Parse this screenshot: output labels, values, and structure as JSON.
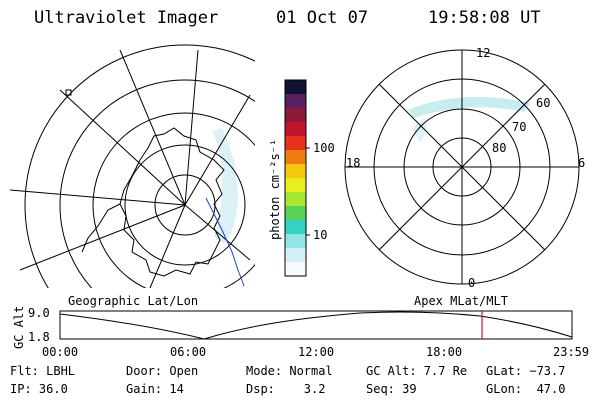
{
  "header": {
    "title": "Ultraviolet Imager",
    "date": "01 Oct 07",
    "time": "19:58:08 UT"
  },
  "colorbar": {
    "label": "photon cm⁻²s⁻¹",
    "ticks": [
      "100",
      "10"
    ],
    "colors": [
      "#111133",
      "#5a1f5e",
      "#8b1a3a",
      "#c0142a",
      "#e8321e",
      "#f07d14",
      "#f5c80f",
      "#e6f01e",
      "#a8e632",
      "#5ad25a",
      "#35d2c3",
      "#8ee6e6",
      "#d2f0f5",
      "#f5fbfd"
    ]
  },
  "polar": {
    "mlt_labels": {
      "top": "12",
      "left": "18",
      "right": "6",
      "bottom": "0"
    },
    "lat_labels": [
      "60",
      "70",
      "80"
    ]
  },
  "map_labels": {
    "left": "Geographic Lat/Lon",
    "right": "Apex MLat/MLT"
  },
  "altplot": {
    "axis_label": "GC Alt",
    "y_ticks": [
      "9.0",
      "1.8"
    ],
    "x_ticks": [
      "00:00",
      "06:00",
      "12:00",
      "18:00",
      "23:59"
    ],
    "marker_color": "#d0141e"
  },
  "info": {
    "row1": {
      "filter": "Flt: LBHL",
      "door": "Door: Open",
      "mode": "Mode: Normal",
      "gcalt": "GC Alt: 7.7 Re",
      "glat": "GLat: −73.7"
    },
    "row2": {
      "ip": "IP: 36.0",
      "gain": "Gain: 14",
      "dsp": "Dsp:    3.2",
      "seq": "Seq: 39",
      "glon": "GLon:  47.0"
    }
  }
}
